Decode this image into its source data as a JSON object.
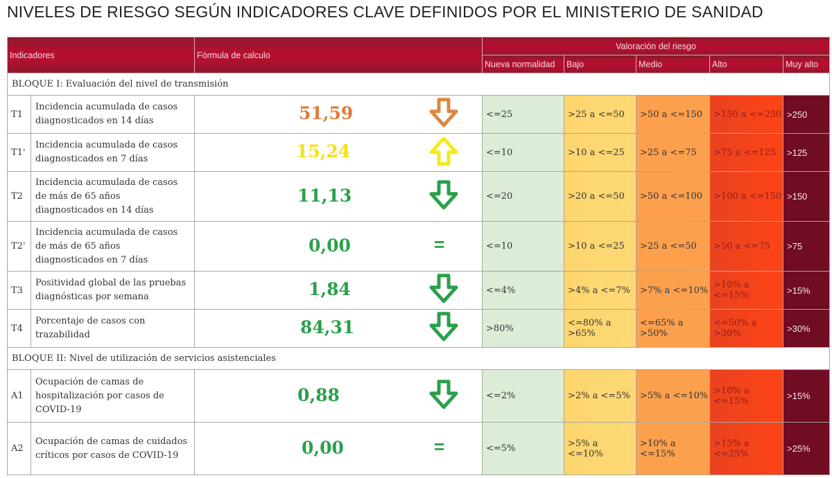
{
  "title": "NIVELES DE RIESGO SEGÚN INDICADORES CLAVE DEFINIDOS POR EL MINISTERIO DE SANIDAD",
  "header": {
    "indicadores": "Indicadores",
    "formula": "Fórmula de calculo",
    "valoracion": "Valoración del riesgo",
    "levels": [
      "Nueva normalidad",
      "Bajo",
      "Medio",
      "Alto",
      "Muy alto"
    ]
  },
  "colors": {
    "nueva_normalidad": "#ddecd6",
    "bajo": "#fdd66e",
    "medio": "#fca04e",
    "alto": "#fd4316",
    "muy_alto": "#700c24",
    "header": "#b5102e",
    "value_orange": "#e07b39",
    "value_yellow": "#f5e10a",
    "value_green": "#2aa04a"
  },
  "blocks": [
    {
      "label": "BLOQUE I: Evaluación del nivel de transmisión",
      "rows": [
        {
          "code": "T1",
          "desc": "Incidencia acumulada de casos diagnosticados en 14 días",
          "value": "51,59",
          "trend": "down",
          "ranges": [
            "<=25",
            ">25 a <=50",
            ">50 a <=150",
            ">150 a <=250",
            ">250"
          ]
        },
        {
          "code": "T1'",
          "desc": "Incidencia acumulada de casos diagnosticados en 7 días",
          "value": "15,24",
          "trend": "up",
          "ranges": [
            "<=10",
            ">10 a <=25",
            ">25 a <=75",
            ">75 a <=125",
            ">125"
          ]
        },
        {
          "code": "T2",
          "desc": "Incidencia acumulada de casos de más de 65 años diagnosticados en 14 días",
          "value": "11,13",
          "trend": "down",
          "ranges": [
            "<=20",
            ">20 a <=50",
            ">50 a <=100",
            ">100 a <=150",
            ">150"
          ]
        },
        {
          "code": "T2'",
          "desc": "Incidencia acumulada de casos de más de 65 años diagnosticados en 7 días",
          "value": "0,00",
          "trend": "=",
          "ranges": [
            "<=10",
            ">10 a <=25",
            ">25 a <=50",
            ">50 a <=75",
            ">75"
          ]
        },
        {
          "code": "T3",
          "desc": "Positividad global de las pruebas diagnósticas por semana",
          "value": "1,84",
          "trend": "down",
          "ranges": [
            "<=4%",
            ">4% a <=7%",
            ">7% a <=10%",
            ">10% a <=15%",
            ">15%"
          ]
        },
        {
          "code": "T4",
          "desc": "Porcentaje de casos con trazabilidad",
          "value": "84,31",
          "trend": "down",
          "ranges": [
            ">80%",
            "<=80% a >65%",
            "<=65% a >50%",
            "<=50% a >30%",
            ">30%"
          ]
        }
      ]
    },
    {
      "label": "BLOQUE II: Nivel de utilización de servicios asistenciales",
      "rows": [
        {
          "code": "A1",
          "desc": "Ocupación de camas de hospitalización por casos de COVID-19",
          "value": "0,88",
          "trend": "down",
          "ranges": [
            "<=2%",
            ">2% a <=5%",
            ">5% a <=10%",
            ">10% a <=15%",
            ">15%"
          ]
        },
        {
          "code": "A2",
          "desc": "Ocupación de camas de cuidados críticos por casos de COVID-19",
          "value": "0,00",
          "trend": "=",
          "ranges": [
            "<=5%",
            ">5% a <=10%",
            ">10% a <=15%",
            ">15% a <=25%",
            ">25%"
          ]
        }
      ]
    }
  ]
}
